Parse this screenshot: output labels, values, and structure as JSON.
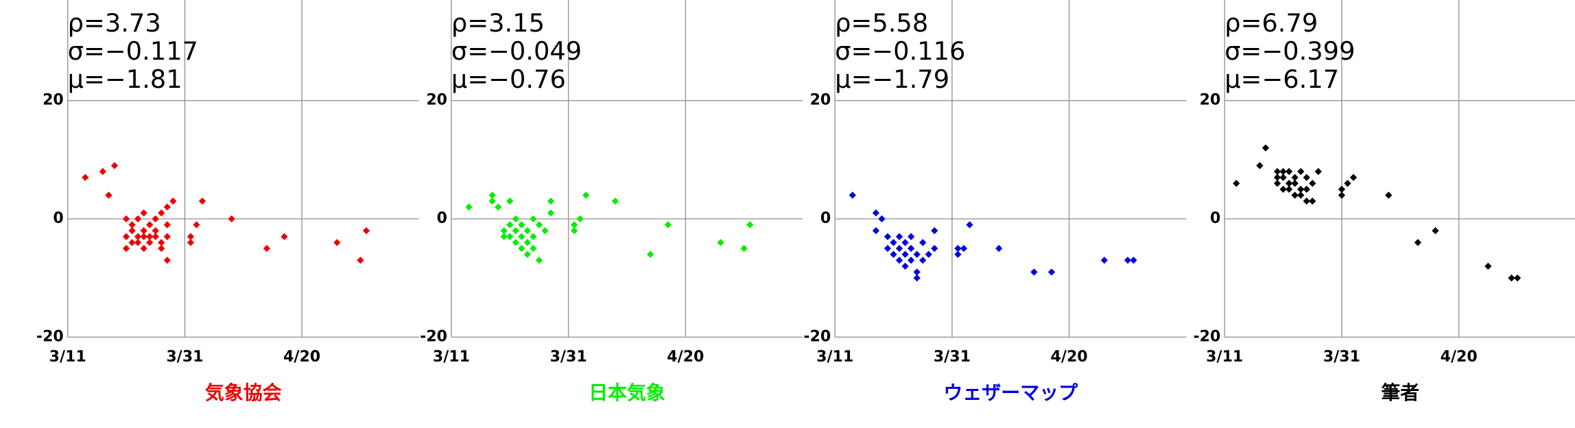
{
  "chart_data": [
    {
      "type": "scatter",
      "title": "気象協会",
      "color": "#ee0000",
      "annotations": [
        "ρ=3.73",
        "σ=−0.117",
        "μ=−1.81"
      ],
      "x": [
        "3/14",
        "3/17",
        "3/18",
        "3/19",
        "3/21",
        "3/21",
        "3/21",
        "3/22",
        "3/22",
        "3/22",
        "3/23",
        "3/23",
        "3/23",
        "3/24",
        "3/24",
        "3/24",
        "3/24",
        "3/25",
        "3/25",
        "3/25",
        "3/26",
        "3/26",
        "3/26",
        "3/27",
        "3/27",
        "3/27",
        "3/28",
        "3/28",
        "3/28",
        "3/28",
        "3/29",
        "4/1",
        "4/1",
        "4/2",
        "4/3",
        "4/8",
        "4/14",
        "4/17",
        "4/26",
        "4/30",
        "5/1"
      ],
      "values": [
        7,
        8,
        4,
        9,
        0,
        -3,
        -5,
        -1,
        -2,
        -4,
        0,
        -3,
        -4,
        1,
        -2,
        -3,
        -5,
        -1,
        -3,
        -4,
        0,
        -2,
        -3,
        1,
        -4,
        -5,
        -1,
        -3,
        -7,
        2,
        3,
        -3,
        -4,
        -1,
        3,
        0,
        -5,
        -3,
        -4,
        -7,
        -2
      ],
      "xlim": [
        "3/11",
        "5/10"
      ],
      "xticks": [
        "3/11",
        "3/31",
        "4/20"
      ],
      "ylim": [
        -20,
        37
      ],
      "yticks": [
        -20,
        0,
        20
      ],
      "grid": true
    },
    {
      "type": "scatter",
      "title": "日本気象",
      "color": "#00ee00",
      "annotations": [
        "ρ=3.15",
        "σ=−0.049",
        "μ=−0.76"
      ],
      "x": [
        "3/14",
        "3/18",
        "3/18",
        "3/19",
        "3/20",
        "3/20",
        "3/21",
        "3/21",
        "3/21",
        "3/22",
        "3/22",
        "3/22",
        "3/23",
        "3/23",
        "3/23",
        "3/24",
        "3/24",
        "3/24",
        "3/25",
        "3/25",
        "3/25",
        "3/26",
        "3/26",
        "3/27",
        "3/28",
        "3/28",
        "4/1",
        "4/1",
        "4/2",
        "4/3",
        "4/8",
        "4/14",
        "4/17",
        "4/26",
        "4/30",
        "5/1"
      ],
      "values": [
        2,
        4,
        3,
        2,
        -2,
        -3,
        3,
        -1,
        -3,
        0,
        -2,
        -4,
        -1,
        -3,
        -5,
        -2,
        -4,
        -6,
        0,
        -3,
        -5,
        -1,
        -7,
        -2,
        3,
        1,
        -2,
        -1,
        0,
        4,
        3,
        -6,
        -1,
        -4,
        -5,
        -1
      ],
      "xlim": [
        "3/11",
        "5/10"
      ],
      "xticks": [
        "3/11",
        "3/31",
        "4/20"
      ],
      "ylim": [
        -20,
        37
      ],
      "yticks": [
        -20,
        0,
        20
      ],
      "grid": true
    },
    {
      "type": "scatter",
      "title": "ウェザーマップ",
      "color": "#0000dd",
      "annotations": [
        "ρ=5.58",
        "σ=−0.116",
        "μ=−1.79"
      ],
      "x": [
        "3/14",
        "3/18",
        "3/18",
        "3/19",
        "3/20",
        "3/20",
        "3/21",
        "3/21",
        "3/22",
        "3/22",
        "3/22",
        "3/23",
        "3/23",
        "3/23",
        "3/24",
        "3/24",
        "3/24",
        "3/25",
        "3/25",
        "3/25",
        "3/26",
        "3/26",
        "3/27",
        "3/28",
        "3/28",
        "4/1",
        "4/1",
        "4/2",
        "4/3",
        "4/8",
        "4/14",
        "4/17",
        "4/26",
        "4/30",
        "5/1"
      ],
      "values": [
        4,
        1,
        -2,
        0,
        -3,
        -5,
        -4,
        -6,
        -3,
        -5,
        -7,
        -4,
        -6,
        -8,
        -3,
        -5,
        -7,
        -6,
        -9,
        -10,
        -4,
        -7,
        -6,
        -2,
        -5,
        -5,
        -6,
        -5,
        -1,
        -5,
        -9,
        -9,
        -7,
        -7,
        -7
      ],
      "xlim": [
        "3/11",
        "5/10"
      ],
      "xticks": [
        "3/11",
        "3/31",
        "4/20"
      ],
      "ylim": [
        -20,
        37
      ],
      "yticks": [
        -20,
        0,
        20
      ],
      "grid": true
    },
    {
      "type": "scatter",
      "title": "筆者",
      "color": "#000000",
      "annotations": [
        "ρ=6.79",
        "σ=−0.399",
        "μ=−6.17"
      ],
      "x": [
        "3/13",
        "3/17",
        "3/18",
        "3/20",
        "3/20",
        "3/20",
        "3/21",
        "3/21",
        "3/21",
        "3/22",
        "3/22",
        "3/22",
        "3/23",
        "3/23",
        "3/23",
        "3/24",
        "3/24",
        "3/24",
        "3/25",
        "3/25",
        "3/25",
        "3/26",
        "3/26",
        "3/27",
        "3/31",
        "3/31",
        "4/1",
        "4/2",
        "4/8",
        "4/13",
        "4/16",
        "4/25",
        "4/29",
        "4/30"
      ],
      "values": [
        6,
        9,
        12,
        8,
        7,
        6,
        8,
        7,
        5,
        8,
        6,
        5,
        7,
        6,
        4,
        8,
        5,
        4,
        7,
        5,
        3,
        6,
        3,
        8,
        4,
        5,
        6,
        7,
        4,
        -4,
        -2,
        -8,
        -10,
        -10
      ],
      "xlim": [
        "3/11",
        "5/10"
      ],
      "xticks": [
        "3/11",
        "3/31",
        "4/20"
      ],
      "ylim": [
        -20,
        37
      ],
      "yticks": [
        -20,
        0,
        20
      ],
      "grid": true
    }
  ]
}
